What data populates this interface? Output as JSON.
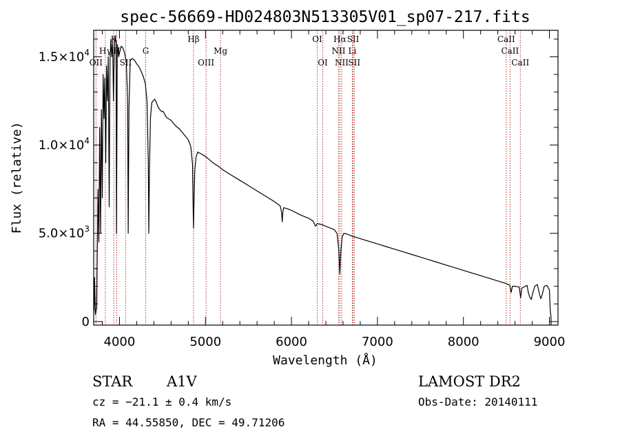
{
  "chart_data": {
    "type": "line",
    "title": "spec-56669-HD024803N513305V01_sp07-217.fits",
    "xlabel": "Wavelength (Å)",
    "ylabel": "Flux (relative)",
    "xlim": [
      3700,
      9100
    ],
    "ylim": [
      -200,
      16500
    ],
    "x_ticks": [
      {
        "value": 4000,
        "label": "4000"
      },
      {
        "value": 5000,
        "label": "5000"
      },
      {
        "value": 6000,
        "label": "6000"
      },
      {
        "value": 7000,
        "label": "7000"
      },
      {
        "value": 8000,
        "label": "8000"
      },
      {
        "value": 9000,
        "label": "9000"
      }
    ],
    "y_ticks": [
      {
        "value": 0,
        "mant": "0",
        "exp": ""
      },
      {
        "value": 5000,
        "mant": "5.0×10",
        "exp": "3"
      },
      {
        "value": 10000,
        "mant": "1.0×10",
        "exp": "4"
      },
      {
        "value": 15000,
        "mant": "1.5×10",
        "exp": "4"
      }
    ],
    "series": [
      {
        "color": "#000000",
        "points": [
          [
            3705,
            600
          ],
          [
            3710,
            2500
          ],
          [
            3720,
            400
          ],
          [
            3735,
            800
          ],
          [
            3750,
            7500
          ],
          [
            3760,
            4500
          ],
          [
            3770,
            11000
          ],
          [
            3780,
            5000
          ],
          [
            3790,
            12000
          ],
          [
            3800,
            7000
          ],
          [
            3810,
            14000
          ],
          [
            3820,
            11500
          ],
          [
            3830,
            13800
          ],
          [
            3840,
            9000
          ],
          [
            3850,
            14500
          ],
          [
            3860,
            12500
          ],
          [
            3870,
            15000
          ],
          [
            3880,
            6500
          ],
          [
            3890,
            14800
          ],
          [
            3900,
            16000
          ],
          [
            3910,
            15000
          ],
          [
            3920,
            15800
          ],
          [
            3930,
            12500
          ],
          [
            3940,
            15500
          ],
          [
            3950,
            16200
          ],
          [
            3960,
            15800
          ],
          [
            3965,
            5000
          ],
          [
            3975,
            15700
          ],
          [
            3990,
            15000
          ],
          [
            4000,
            15200
          ],
          [
            4010,
            15400
          ],
          [
            4020,
            15600
          ],
          [
            4040,
            15500
          ],
          [
            4060,
            15200
          ],
          [
            4080,
            14700
          ],
          [
            4095,
            12500
          ],
          [
            4101,
            5000
          ],
          [
            4110,
            12000
          ],
          [
            4125,
            14800
          ],
          [
            4150,
            14900
          ],
          [
            4175,
            14800
          ],
          [
            4200,
            14600
          ],
          [
            4225,
            14450
          ],
          [
            4250,
            14200
          ],
          [
            4275,
            13900
          ],
          [
            4300,
            13500
          ],
          [
            4320,
            12500
          ],
          [
            4335,
            9000
          ],
          [
            4341,
            5000
          ],
          [
            4348,
            8500
          ],
          [
            4360,
            11500
          ],
          [
            4375,
            12400
          ],
          [
            4390,
            12500
          ],
          [
            4410,
            12600
          ],
          [
            4430,
            12400
          ],
          [
            4450,
            12150
          ],
          [
            4470,
            12000
          ],
          [
            4490,
            11900
          ],
          [
            4510,
            11900
          ],
          [
            4530,
            11700
          ],
          [
            4550,
            11550
          ],
          [
            4600,
            11400
          ],
          [
            4650,
            11100
          ],
          [
            4700,
            10900
          ],
          [
            4750,
            10600
          ],
          [
            4800,
            10300
          ],
          [
            4830,
            9900
          ],
          [
            4850,
            8900
          ],
          [
            4856,
            6500
          ],
          [
            4861,
            5300
          ],
          [
            4866,
            6500
          ],
          [
            4875,
            8500
          ],
          [
            4890,
            9300
          ],
          [
            4910,
            9600
          ],
          [
            4950,
            9500
          ],
          [
            5000,
            9350
          ],
          [
            5050,
            9150
          ],
          [
            5100,
            8950
          ],
          [
            5150,
            8800
          ],
          [
            5200,
            8600
          ],
          [
            5300,
            8300
          ],
          [
            5400,
            8000
          ],
          [
            5500,
            7700
          ],
          [
            5600,
            7400
          ],
          [
            5700,
            7100
          ],
          [
            5800,
            6800
          ],
          [
            5870,
            6550
          ],
          [
            5885,
            6200
          ],
          [
            5893,
            5650
          ],
          [
            5900,
            6200
          ],
          [
            5910,
            6450
          ],
          [
            5950,
            6400
          ],
          [
            6000,
            6300
          ],
          [
            6100,
            6050
          ],
          [
            6200,
            5850
          ],
          [
            6250,
            5700
          ],
          [
            6280,
            5400
          ],
          [
            6300,
            5550
          ],
          [
            6350,
            5500
          ],
          [
            6400,
            5400
          ],
          [
            6450,
            5300
          ],
          [
            6500,
            5200
          ],
          [
            6530,
            5000
          ],
          [
            6550,
            4100
          ],
          [
            6563,
            2700
          ],
          [
            6575,
            4000
          ],
          [
            6590,
            4800
          ],
          [
            6610,
            5000
          ],
          [
            6650,
            4950
          ],
          [
            6700,
            4850
          ],
          [
            6800,
            4700
          ],
          [
            6900,
            4550
          ],
          [
            7000,
            4400
          ],
          [
            7100,
            4250
          ],
          [
            7200,
            4100
          ],
          [
            7300,
            3950
          ],
          [
            7400,
            3800
          ],
          [
            7500,
            3650
          ],
          [
            7600,
            3500
          ],
          [
            7700,
            3350
          ],
          [
            7800,
            3200
          ],
          [
            7900,
            3050
          ],
          [
            8000,
            2900
          ],
          [
            8100,
            2750
          ],
          [
            8200,
            2600
          ],
          [
            8300,
            2450
          ],
          [
            8400,
            2300
          ],
          [
            8500,
            2150
          ],
          [
            8540,
            2050
          ],
          [
            8555,
            1650
          ],
          [
            8570,
            2000
          ],
          [
            8600,
            2000
          ],
          [
            8650,
            1950
          ],
          [
            8665,
            1350
          ],
          [
            8680,
            1900
          ],
          [
            8700,
            1950
          ],
          [
            8740,
            2050
          ],
          [
            8755,
            1650
          ],
          [
            8770,
            1400
          ],
          [
            8790,
            1250
          ],
          [
            8805,
            1600
          ],
          [
            8830,
            2000
          ],
          [
            8860,
            2100
          ],
          [
            8885,
            1550
          ],
          [
            8900,
            1300
          ],
          [
            8915,
            1500
          ],
          [
            8940,
            2000
          ],
          [
            8970,
            2050
          ],
          [
            9000,
            1800
          ],
          [
            9010,
            600
          ],
          [
            9018,
            300
          ],
          [
            9020,
            -200
          ]
        ]
      }
    ],
    "line_labels": [
      {
        "x": 3727,
        "text": "OII",
        "row": 3
      },
      {
        "x": 3835,
        "text": "Hγ",
        "row": 2
      },
      {
        "x": 3934,
        "text": "K",
        "row": 1
      },
      {
        "x": 3968,
        "text": "H",
        "row": 2
      },
      {
        "x": 4072,
        "text": "SII",
        "row": 3
      },
      {
        "x": 4305,
        "text": "G",
        "row": 2
      },
      {
        "x": 4861,
        "text": "Hβ",
        "row": 1
      },
      {
        "x": 5007,
        "text": "OIII",
        "row": 3
      },
      {
        "x": 5175,
        "text": "Mg",
        "row": 2
      },
      {
        "x": 6300,
        "text": "OI",
        "row": 1
      },
      {
        "x": 6364,
        "text": "OI",
        "row": 3
      },
      {
        "x": 6563,
        "text": "Hα",
        "row": 1
      },
      {
        "x": 6548,
        "text": "NII",
        "row": 2
      },
      {
        "x": 6584,
        "text": "NII",
        "row": 3
      },
      {
        "x": 6717,
        "text": "SII",
        "row": 1
      },
      {
        "x": 6708,
        "text": "Li",
        "row": 2
      },
      {
        "x": 6731,
        "text": "SII",
        "row": 3
      },
      {
        "x": 8498,
        "text": "CaII",
        "row": 1
      },
      {
        "x": 8542,
        "text": "CaII",
        "row": 2
      },
      {
        "x": 8662,
        "text": "CaII",
        "row": 3
      }
    ],
    "marker_lines": [
      3727,
      3835,
      3934,
      3968,
      4072,
      4305,
      4861,
      5007,
      5175,
      6300,
      6364,
      6548,
      6563,
      6584,
      6708,
      6717,
      6731,
      8498,
      8542,
      8662
    ],
    "marker_color": "#b03030"
  },
  "info": {
    "class_label": "STAR",
    "subclass_label": "A1V",
    "cz_label": "cz = −21.1 ± 0.4 km/s",
    "radec_label": "RA =  44.55850, DEC =  49.71206",
    "survey_label": "LAMOST DR2",
    "obsdate_label": "Obs-Date: 20140111"
  }
}
